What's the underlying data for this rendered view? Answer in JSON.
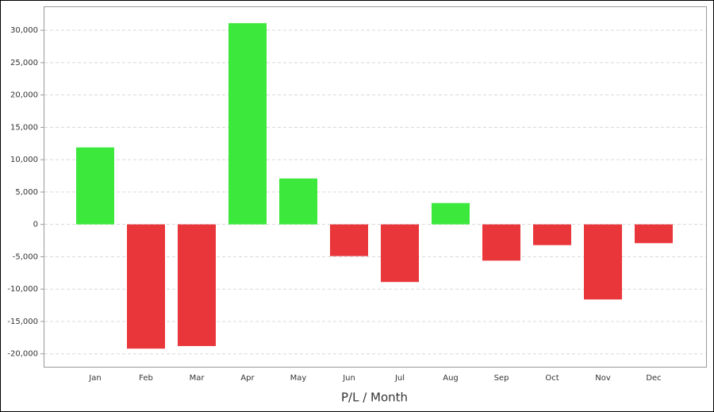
{
  "chart_data": {
    "type": "bar",
    "x_label": "P/L / Month",
    "categories": [
      "Jan",
      "Feb",
      "Mar",
      "Apr",
      "May",
      "Jun",
      "Jul",
      "Aug",
      "Sep",
      "Oct",
      "Nov",
      "Dec"
    ],
    "values": [
      11900,
      -19200,
      -18800,
      31100,
      7100,
      -4900,
      -8900,
      3300,
      -5600,
      -3200,
      -11600,
      -2900
    ],
    "positive_color": "#3de83d",
    "negative_color": "#e8363a",
    "ylim": [
      -22000,
      33700
    ],
    "yticks": [
      {
        "value": -20000,
        "label": "-20,000"
      },
      {
        "value": -15000,
        "label": "-15,000"
      },
      {
        "value": -10000,
        "label": "-10,000"
      },
      {
        "value": -5000,
        "label": "-5,000"
      },
      0,
      {
        "value": 5000,
        "label": "5,000"
      },
      {
        "value": 10000,
        "label": "10,000"
      },
      {
        "value": 15000,
        "label": "15,000"
      },
      {
        "value": 20000,
        "label": "20,000"
      },
      {
        "value": 25000,
        "label": "25,000"
      },
      {
        "value": 30000,
        "label": "30,000"
      }
    ],
    "grid": true
  }
}
